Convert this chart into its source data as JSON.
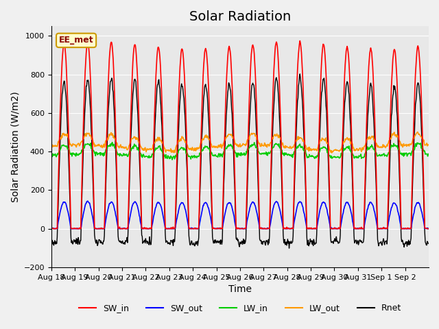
{
  "title": "Solar Radiation",
  "ylabel": "Solar Radiation (W/m2)",
  "xlabel": "Time",
  "annotation": "EE_met",
  "ylim": [
    -200,
    1050
  ],
  "n_days": 16,
  "tick_labels": [
    "Aug 18",
    "Aug 19",
    "Aug 20",
    "Aug 21",
    "Aug 22",
    "Aug 23",
    "Aug 24",
    "Aug 25",
    "Aug 26",
    "Aug 27",
    "Aug 28",
    "Aug 29",
    "Aug 30",
    "Aug 31",
    "Sep 1",
    "Sep 2"
  ],
  "SW_in_color": "#ff0000",
  "SW_out_color": "#0000ff",
  "LW_in_color": "#00cc00",
  "LW_out_color": "#ff9900",
  "Rnet_color": "#000000",
  "background_color": "#e8e8e8",
  "fig_background": "#f0f0f0",
  "grid_color": "#ffffff",
  "title_fontsize": 14,
  "label_fontsize": 10,
  "tick_fontsize": 8,
  "SW_in_peak": 950,
  "LW_in_base": 380,
  "LW_in_amp": 50,
  "LW_out_base": 420,
  "LW_out_amp": 60,
  "Rnet_night": -70,
  "dt_hours": 0.5
}
